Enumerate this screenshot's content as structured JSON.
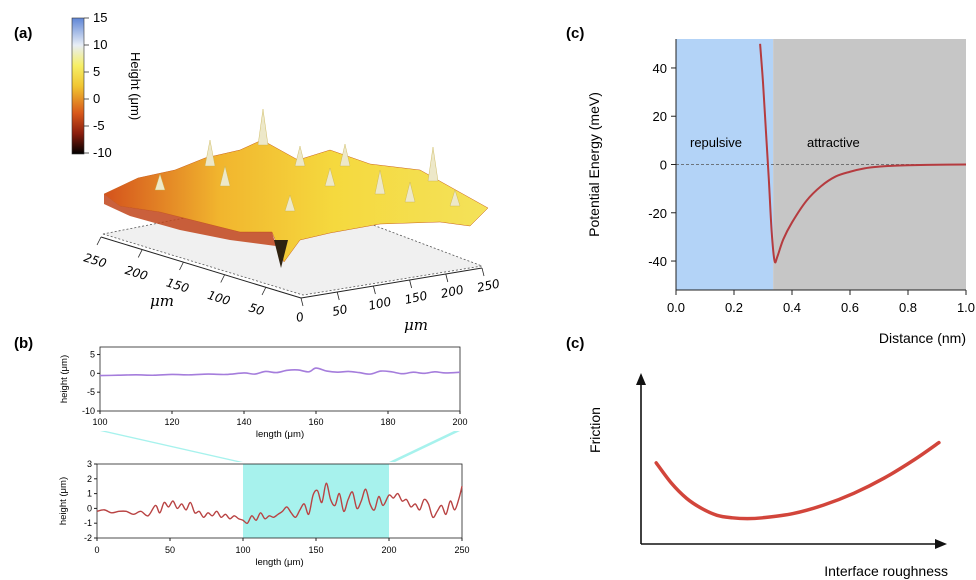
{
  "panel_a": {
    "label": "(a)",
    "colorbar_title": "Height (μm)",
    "colorbar_ticks": [
      "15",
      "10",
      "5",
      "0",
      "-5",
      "-10"
    ],
    "left_axis_ticks": [
      "250",
      "200",
      "150",
      "100",
      "50"
    ],
    "right_axis_ticks": [
      "0",
      "50",
      "100",
      "150",
      "200",
      "250"
    ],
    "left_axis_unit": "μm",
    "right_axis_unit": "μm"
  },
  "panel_c_top": {
    "label": "(c)",
    "region_repulsive": "repulsive",
    "region_attractive": "attractive"
  },
  "panel_b": {
    "label": "(b)"
  },
  "panel_c_bottom": {
    "label": "(c)"
  },
  "chart_data": [
    {
      "type": "line",
      "id": "potential",
      "xlabel": "Distance (nm)",
      "ylabel": "Potential Energy (meV)",
      "xlim": [
        0.0,
        1.0
      ],
      "ylim": [
        -52,
        52
      ],
      "xticks": [
        "0.0",
        "0.2",
        "0.4",
        "0.6",
        "0.8",
        "1.0"
      ],
      "yticks": [
        "40",
        "20",
        "0",
        "-20",
        "-40"
      ],
      "regions": [
        {
          "name": "repulsive",
          "x": [
            0.0,
            0.335
          ],
          "color": "#b3d3f7"
        },
        {
          "name": "attractive",
          "x": [
            0.335,
            1.0
          ],
          "color": "#c6c6c6"
        }
      ],
      "series": [
        {
          "color": "#b53b3f",
          "x": [
            0.29,
            0.3,
            0.31,
            0.32,
            0.33,
            0.34,
            0.35,
            0.37,
            0.4,
            0.45,
            0.5,
            0.55,
            0.6,
            0.65,
            0.7,
            0.75,
            0.8,
            0.9,
            1.0
          ],
          "y": [
            50,
            34,
            14,
            -6,
            -28,
            -40,
            -38,
            -31,
            -24,
            -15,
            -9,
            -5,
            -3,
            -1.6,
            -0.9,
            -0.5,
            -0.3,
            -0.1,
            0
          ]
        }
      ]
    },
    {
      "type": "line",
      "id": "profile_zoom",
      "xlabel": "length (μm)",
      "ylabel": "height (μm)",
      "xlim": [
        100,
        200
      ],
      "ylim": [
        -10,
        7
      ],
      "xticks": [
        "100",
        "120",
        "140",
        "160",
        "180",
        "200"
      ],
      "yticks": [
        "5",
        "0",
        "-5",
        "-10"
      ],
      "series": [
        {
          "color": "#a57ddc",
          "x": [
            100,
            105,
            110,
            115,
            120,
            125,
            130,
            135,
            140,
            143,
            146,
            149,
            152,
            155,
            158,
            160,
            163,
            166,
            169,
            172,
            175,
            178,
            181,
            184,
            187,
            190,
            193,
            196,
            200
          ],
          "y": [
            -0.6,
            -0.5,
            -0.4,
            -0.5,
            -0.3,
            -0.4,
            -0.2,
            -0.3,
            0.1,
            -0.2,
            0.5,
            0.2,
            0.8,
            0.9,
            0.4,
            1.4,
            0.6,
            0.3,
            0.5,
            0.2,
            -0.2,
            0.6,
            0.4,
            -0.1,
            0.3,
            0.0,
            0.4,
            0.1,
            0.3
          ]
        }
      ]
    },
    {
      "type": "line",
      "id": "profile_full",
      "xlabel": "length (μm)",
      "ylabel": "height (μm)",
      "xlim": [
        0,
        250
      ],
      "ylim": [
        -2,
        3
      ],
      "xticks": [
        "0",
        "50",
        "100",
        "150",
        "200",
        "250"
      ],
      "yticks": [
        "3",
        "2",
        "1",
        "0",
        "-1",
        "-2"
      ],
      "highlight": [
        100,
        200
      ],
      "series": [
        {
          "color": "#b94343",
          "x": [
            0,
            5,
            10,
            15,
            20,
            25,
            30,
            35,
            40,
            43,
            46,
            49,
            52,
            55,
            58,
            61,
            64,
            67,
            70,
            73,
            76,
            79,
            82,
            85,
            88,
            91,
            94,
            97,
            100,
            103,
            106,
            109,
            112,
            115,
            118,
            121,
            124,
            127,
            130,
            133,
            136,
            139,
            142,
            145,
            148,
            151,
            154,
            157,
            160,
            163,
            166,
            169,
            172,
            175,
            178,
            181,
            184,
            187,
            190,
            193,
            196,
            200,
            203,
            206,
            209,
            212,
            215,
            218,
            221,
            224,
            227,
            230,
            233,
            236,
            239,
            242,
            245,
            248,
            250
          ],
          "y": [
            -0.2,
            -0.1,
            -0.3,
            -0.2,
            -0.2,
            -0.4,
            -0.2,
            -0.5,
            0.2,
            -0.3,
            0.4,
            0.1,
            0.5,
            0.0,
            0.3,
            -0.1,
            0.4,
            -0.3,
            -0.2,
            -0.6,
            -0.3,
            -0.5,
            -0.2,
            -0.6,
            -0.4,
            -0.7,
            -0.5,
            -0.7,
            -0.8,
            -1.0,
            -0.5,
            -0.8,
            -0.3,
            -0.7,
            -0.5,
            -0.6,
            -0.4,
            -0.2,
            0.1,
            -0.3,
            -0.6,
            -0.1,
            0.3,
            -0.4,
            0.9,
            1.2,
            0.4,
            1.7,
            0.6,
            0.2,
            1.0,
            -0.2,
            0.6,
            1.1,
            0.0,
            0.5,
            1.3,
            0.3,
            -0.1,
            0.8,
            0.2,
            0.9,
            0.7,
            1.0,
            0.5,
            0.6,
            0.1,
            0.3,
            -0.1,
            0.6,
            0.3,
            -0.6,
            -0.2,
            0.2,
            -0.4,
            0.5,
            -0.1,
            0.7,
            1.5
          ]
        }
      ]
    },
    {
      "type": "line",
      "id": "friction",
      "xlabel": "Interface roughness",
      "ylabel": "Friction",
      "series": [
        {
          "color": "#d2453b",
          "x": [
            0.05,
            0.1,
            0.15,
            0.2,
            0.25,
            0.3,
            0.35,
            0.4,
            0.5,
            0.6,
            0.7,
            0.8,
            0.9,
            0.98
          ],
          "y": [
            0.48,
            0.36,
            0.27,
            0.21,
            0.17,
            0.155,
            0.15,
            0.155,
            0.18,
            0.23,
            0.3,
            0.39,
            0.5,
            0.6
          ]
        }
      ]
    }
  ]
}
